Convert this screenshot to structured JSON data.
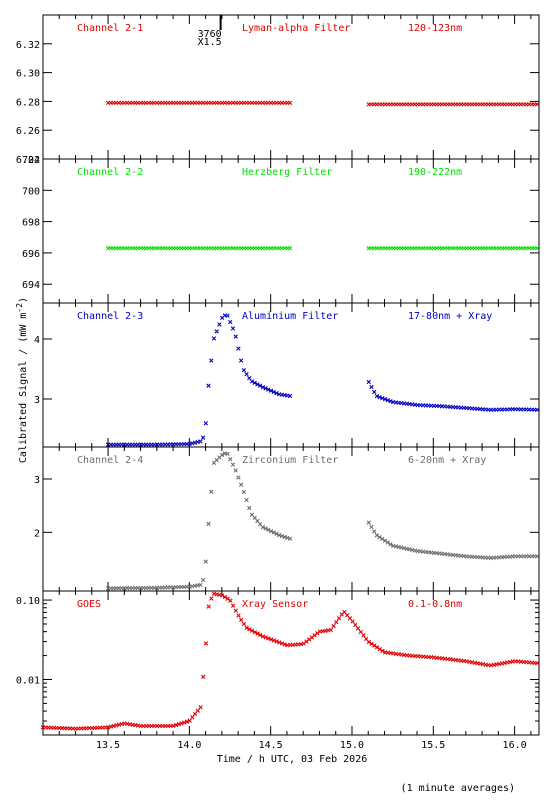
{
  "xlabel": "Time / h UTC, 03 Feb 2026",
  "ylabel": "Calibrated Signal / (mW m",
  "ylabel_exp": "-2",
  "ylabel_close": ")",
  "footnote": "(1 minute averages)",
  "marker": {
    "label": "3760",
    "sublabel": "X1.5",
    "x": 14.1
  },
  "colors": {
    "red": "#e00000",
    "green": "#00e000",
    "blue": "#0000c8",
    "grey": "#6e6e6e",
    "black": "#000000"
  },
  "chart_data": [
    {
      "type": "scatter",
      "channel": "Channel 2-1",
      "filter": "Lyman-alpha Filter",
      "band": "120-123nm",
      "color": "red",
      "scale": "linear",
      "ylim": [
        6.24,
        6.34
      ],
      "yticks": [
        6.24,
        6.26,
        6.28,
        6.3,
        6.32
      ],
      "yticklabels": [
        "6.24",
        "6.26",
        "6.28",
        "6.30",
        "6.32"
      ],
      "x": [
        13.5,
        13.8,
        14.1,
        14.4,
        14.62,
        15.1,
        15.4,
        15.7,
        16.0,
        16.15
      ],
      "y": [
        6.279,
        6.279,
        6.279,
        6.279,
        6.279,
        6.278,
        6.278,
        6.278,
        6.278,
        6.278
      ],
      "gaps": [
        [
          14.62,
          15.1
        ]
      ]
    },
    {
      "type": "scatter",
      "channel": "Channel 2-2",
      "filter": "Herzberg Filter",
      "band": "190-222nm",
      "color": "green",
      "scale": "linear",
      "ylim": [
        692.8,
        702.0
      ],
      "yticks": [
        694,
        696,
        698,
        700,
        702
      ],
      "yticklabels": [
        "694",
        "696",
        "698",
        "700",
        "702"
      ],
      "x": [
        13.5,
        13.8,
        14.1,
        14.4,
        14.62,
        15.1,
        15.4,
        15.7,
        16.0,
        16.15
      ],
      "y": [
        696.3,
        696.3,
        696.3,
        696.3,
        696.3,
        696.3,
        696.3,
        696.3,
        696.3,
        696.3
      ],
      "gaps": [
        [
          14.62,
          15.1
        ]
      ]
    },
    {
      "type": "scatter",
      "channel": "Channel 2-3",
      "filter": "Aluminium Filter",
      "band": "17-80nm + Xray",
      "color": "blue",
      "scale": "linear",
      "ylim": [
        2.2,
        4.6
      ],
      "yticks": [
        3,
        4
      ],
      "yticklabels": [
        "3",
        "4"
      ],
      "x": [
        13.5,
        13.8,
        14.0,
        14.08,
        14.1,
        14.12,
        14.15,
        14.2,
        14.23,
        14.28,
        14.33,
        14.38,
        14.45,
        14.55,
        14.62,
        15.1,
        15.15,
        15.25,
        15.4,
        15.55,
        15.7,
        15.85,
        16.0,
        16.15
      ],
      "y": [
        2.24,
        2.24,
        2.25,
        2.3,
        2.55,
        3.3,
        4.0,
        4.35,
        4.42,
        4.1,
        3.5,
        3.3,
        3.2,
        3.08,
        3.05,
        3.3,
        3.05,
        2.95,
        2.9,
        2.88,
        2.85,
        2.82,
        2.83,
        2.82
      ],
      "gaps": [
        [
          14.62,
          15.1
        ]
      ]
    },
    {
      "type": "scatter",
      "channel": "Channel 2-4",
      "filter": "Zirconium Filter",
      "band": "6-20nm + Xray",
      "color": "grey",
      "scale": "linear",
      "ylim": [
        0.9,
        3.6
      ],
      "yticks": [
        2,
        3
      ],
      "yticklabels": [
        "2",
        "3"
      ],
      "x": [
        13.5,
        13.8,
        14.0,
        14.08,
        14.1,
        14.12,
        14.15,
        14.2,
        14.23,
        14.28,
        14.33,
        14.38,
        14.45,
        14.55,
        14.62,
        15.1,
        15.15,
        15.25,
        15.4,
        15.55,
        15.7,
        15.85,
        16.0,
        16.15
      ],
      "y": [
        0.95,
        0.96,
        0.98,
        1.02,
        1.4,
        2.25,
        3.3,
        3.45,
        3.5,
        3.2,
        2.8,
        2.35,
        2.1,
        1.95,
        1.88,
        2.2,
        1.95,
        1.75,
        1.65,
        1.6,
        1.55,
        1.52,
        1.55,
        1.55
      ],
      "gaps": [
        [
          14.62,
          15.1
        ]
      ]
    },
    {
      "type": "scatter",
      "channel": "GOES",
      "filter": "Xray Sensor",
      "band": "0.1-0.8nm",
      "color": "red",
      "scale": "log",
      "ylim": [
        0.002,
        0.13
      ],
      "yticks": [
        0.01,
        0.1
      ],
      "yticklabels": [
        "0.01",
        "0.10"
      ],
      "x": [
        13.1,
        13.3,
        13.5,
        13.6,
        13.7,
        13.9,
        14.0,
        14.07,
        14.1,
        14.12,
        14.15,
        14.2,
        14.25,
        14.3,
        14.35,
        14.45,
        14.6,
        14.7,
        14.8,
        14.87,
        14.95,
        15.0,
        15.1,
        15.2,
        15.35,
        15.5,
        15.7,
        15.85,
        16.0,
        16.15
      ],
      "y": [
        0.0025,
        0.0024,
        0.0025,
        0.0028,
        0.0026,
        0.0026,
        0.003,
        0.0045,
        0.025,
        0.09,
        0.12,
        0.115,
        0.1,
        0.065,
        0.045,
        0.035,
        0.027,
        0.028,
        0.04,
        0.042,
        0.072,
        0.055,
        0.03,
        0.022,
        0.02,
        0.019,
        0.017,
        0.015,
        0.017,
        0.016
      ],
      "gaps": []
    }
  ],
  "xaxis": {
    "xlim": [
      13.1,
      16.15
    ],
    "ticks": [
      13.5,
      14.0,
      14.5,
      15.0,
      15.5,
      16.0
    ],
    "ticklabels": [
      "13.5",
      "14.0",
      "14.5",
      "15.0",
      "15.5",
      "16.0"
    ]
  }
}
